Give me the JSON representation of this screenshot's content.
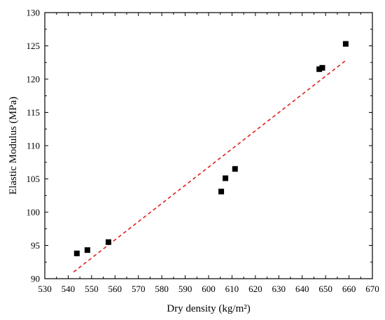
{
  "chart_data": {
    "type": "scatter",
    "title": "",
    "xlabel": "Dry density (kg/m²)",
    "ylabel": "Elastic Modulus (MPa)",
    "xlim": [
      530,
      670
    ],
    "ylim": [
      90,
      130
    ],
    "x_ticks": [
      530,
      540,
      550,
      560,
      570,
      580,
      590,
      600,
      610,
      620,
      630,
      640,
      650,
      660,
      670
    ],
    "y_ticks": [
      90,
      95,
      100,
      105,
      110,
      115,
      120,
      125,
      130
    ],
    "grid": false,
    "legend": "none",
    "series": [
      {
        "marker": "square",
        "color": "#000000",
        "points": [
          {
            "x": 543.7,
            "y": 93.8
          },
          {
            "x": 548.2,
            "y": 94.3
          },
          {
            "x": 557.2,
            "y": 95.5
          },
          {
            "x": 605.4,
            "y": 103.1
          },
          {
            "x": 607.2,
            "y": 105.1
          },
          {
            "x": 611.3,
            "y": 106.5
          },
          {
            "x": 647.3,
            "y": 121.5
          },
          {
            "x": 648.6,
            "y": 121.7
          },
          {
            "x": 658.6,
            "y": 125.3
          }
        ]
      }
    ],
    "trendline": {
      "style": "dashed",
      "color": "#e0201b",
      "x": [
        542.3,
        658.6
      ],
      "y": [
        91.0,
        122.8
      ]
    }
  }
}
